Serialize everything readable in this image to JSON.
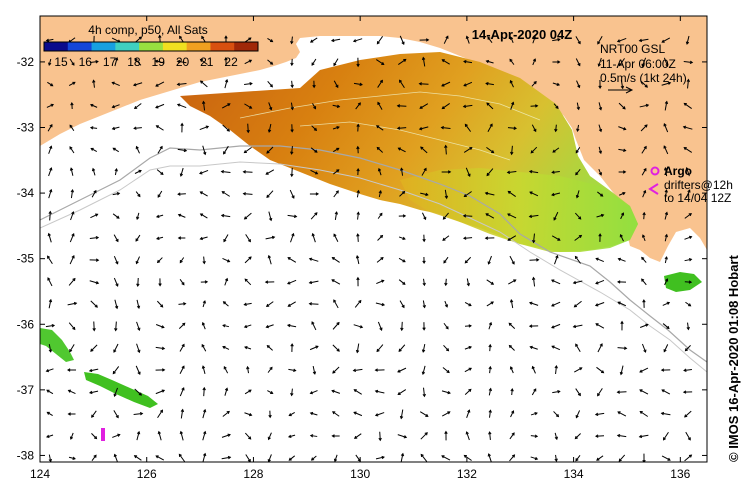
{
  "map": {
    "date_title": "14-Apr-2020 04Z",
    "colorbar_title": "4h comp, p50, All Sats",
    "colorbar_ticks": [
      "15",
      "16",
      "17",
      "18",
      "19",
      "20",
      "21",
      "22"
    ],
    "colorbar_colors": [
      "#0a0a8c",
      "#1446d8",
      "#18a0e0",
      "#40d0c0",
      "#98e040",
      "#f0e020",
      "#f0a020",
      "#d85010",
      "#a02808"
    ],
    "lon_range": [
      124,
      136.5
    ],
    "lat_range": [
      -38.1,
      -31.3
    ],
    "lon_ticks": [
      "124",
      "126",
      "128",
      "130",
      "132",
      "134",
      "136"
    ],
    "lat_ticks": [
      "-32",
      "-33",
      "-34",
      "-35",
      "-36",
      "-37",
      "-38"
    ],
    "current_info": [
      "NRT00 GSL",
      "11-Apr 06:00Z",
      "0.5m/s (1kt 24h)"
    ],
    "argo_label": "Argo",
    "drifter_label_1": "drifters@12h",
    "drifter_label_2": "to 14/04 12Z",
    "credit": "© IMOS 16-Apr-2020 01:08 Hobart",
    "land_color": "#f9c38f",
    "argo_color": "#e020e0"
  }
}
